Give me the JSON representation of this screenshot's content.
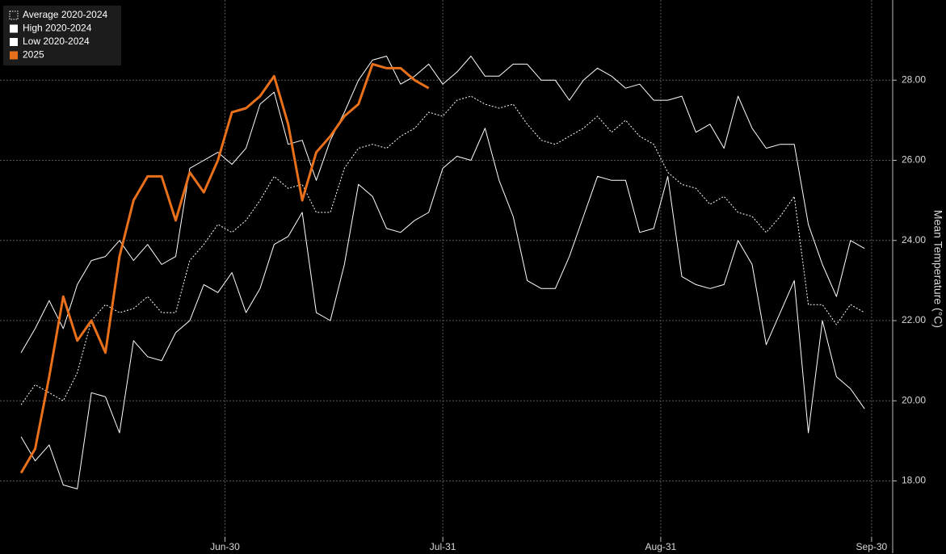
{
  "chart_data": {
    "type": "line",
    "y_label": "Mean Temperature (°C)",
    "x": [
      "Jun-01",
      "Jun-03",
      "Jun-05",
      "Jun-07",
      "Jun-09",
      "Jun-11",
      "Jun-13",
      "Jun-15",
      "Jun-17",
      "Jun-19",
      "Jun-21",
      "Jun-23",
      "Jun-25",
      "Jun-27",
      "Jun-29",
      "Jul-01",
      "Jul-03",
      "Jul-05",
      "Jul-07",
      "Jul-09",
      "Jul-11",
      "Jul-13",
      "Jul-15",
      "Jul-17",
      "Jul-19",
      "Jul-21",
      "Jul-23",
      "Jul-25",
      "Jul-27",
      "Jul-29",
      "Jul-31",
      "Aug-02",
      "Aug-04",
      "Aug-06",
      "Aug-08",
      "Aug-10",
      "Aug-12",
      "Aug-14",
      "Aug-16",
      "Aug-18",
      "Aug-20",
      "Aug-22",
      "Aug-24",
      "Aug-26",
      "Aug-28",
      "Aug-30",
      "Sep-01",
      "Sep-03",
      "Sep-05",
      "Sep-07",
      "Sep-09",
      "Sep-11",
      "Sep-13",
      "Sep-15",
      "Sep-17",
      "Sep-19",
      "Sep-21",
      "Sep-23",
      "Sep-25",
      "Sep-27",
      "Sep-29"
    ],
    "series": [
      {
        "name": "Average 2020-2024",
        "color": "#ffffff",
        "dash": true,
        "values": [
          19.9,
          20.4,
          20.2,
          20.0,
          20.7,
          22.0,
          22.4,
          22.2,
          22.3,
          22.6,
          22.2,
          22.2,
          23.5,
          23.9,
          24.4,
          24.2,
          24.5,
          25.0,
          25.6,
          25.3,
          25.4,
          24.7,
          24.7,
          25.8,
          26.3,
          26.4,
          26.3,
          26.6,
          26.8,
          27.2,
          27.1,
          27.5,
          27.6,
          27.4,
          27.3,
          27.4,
          26.9,
          26.5,
          26.4,
          26.6,
          26.8,
          27.1,
          26.7,
          27.0,
          26.6,
          26.4,
          25.7,
          25.4,
          25.3,
          24.9,
          25.1,
          24.7,
          24.6,
          24.2,
          24.6,
          25.1,
          22.4,
          22.4,
          21.9,
          22.4,
          22.2
        ]
      },
      {
        "name": "High 2020-2024",
        "color": "#ffffff",
        "values": [
          21.2,
          21.8,
          22.5,
          21.8,
          22.9,
          23.5,
          23.6,
          24.0,
          23.5,
          23.9,
          23.4,
          23.6,
          25.8,
          26.0,
          26.2,
          25.9,
          26.3,
          27.4,
          27.7,
          26.4,
          26.5,
          25.5,
          26.5,
          27.2,
          28.0,
          28.5,
          28.6,
          27.9,
          28.1,
          28.4,
          27.9,
          28.2,
          28.6,
          28.1,
          28.1,
          28.4,
          28.4,
          28.0,
          28.0,
          27.5,
          28.0,
          28.3,
          28.1,
          27.8,
          27.9,
          27.5,
          27.5,
          27.6,
          26.7,
          26.9,
          26.3,
          27.6,
          26.8,
          26.3,
          26.4,
          26.4,
          24.4,
          23.4,
          22.6,
          24.0,
          23.8
        ]
      },
      {
        "name": "Low 2020-2024",
        "color": "#ffffff",
        "values": [
          19.1,
          18.5,
          18.9,
          17.9,
          17.8,
          20.2,
          20.1,
          19.2,
          21.5,
          21.1,
          21.0,
          21.7,
          22.0,
          22.9,
          22.7,
          23.2,
          22.2,
          22.8,
          23.9,
          24.1,
          24.7,
          22.2,
          22.0,
          23.4,
          25.4,
          25.1,
          24.3,
          24.2,
          24.5,
          24.7,
          25.8,
          26.1,
          26.0,
          26.8,
          25.5,
          24.6,
          23.0,
          22.8,
          22.8,
          23.6,
          24.6,
          25.6,
          25.5,
          25.5,
          24.2,
          24.3,
          25.6,
          23.1,
          22.9,
          22.8,
          22.9,
          24.0,
          23.4,
          21.4,
          22.2,
          23.0,
          19.2,
          22.0,
          20.6,
          20.3,
          19.8
        ]
      },
      {
        "name": "2025",
        "color": "#e8701a",
        "width": 3,
        "values": [
          18.2,
          18.8,
          20.6,
          22.6,
          21.5,
          22.0,
          21.2,
          23.6,
          25.0,
          25.6,
          25.6,
          24.5,
          25.7,
          25.2,
          26.0,
          27.2,
          27.3,
          27.6,
          28.1,
          26.9,
          25.0,
          26.2,
          26.6,
          27.1,
          27.4,
          28.4,
          28.3,
          28.3,
          28.0,
          27.8,
          null,
          null,
          null,
          null,
          null,
          null,
          null,
          null,
          null,
          null,
          null,
          null,
          null,
          null,
          null,
          null,
          null,
          null,
          null,
          null,
          null,
          null,
          null,
          null,
          null,
          null,
          null,
          null,
          null,
          null,
          null
        ]
      }
    ],
    "xlim": [
      "May-29",
      "Oct-03"
    ],
    "xticks": [
      "Jun-30",
      "Jul-31",
      "Aug-31",
      "Sep-30"
    ],
    "ylim": [
      16.6,
      30.0
    ],
    "yticks": [
      {
        "value": 18,
        "label": "18.00"
      },
      {
        "value": 20,
        "label": "20.00"
      },
      {
        "value": 22,
        "label": "22.00"
      },
      {
        "value": 24,
        "label": "24.00"
      },
      {
        "value": 26,
        "label": "26.00"
      },
      {
        "value": 28,
        "label": "28.00"
      }
    ],
    "grid": true,
    "legend": "top-left"
  }
}
